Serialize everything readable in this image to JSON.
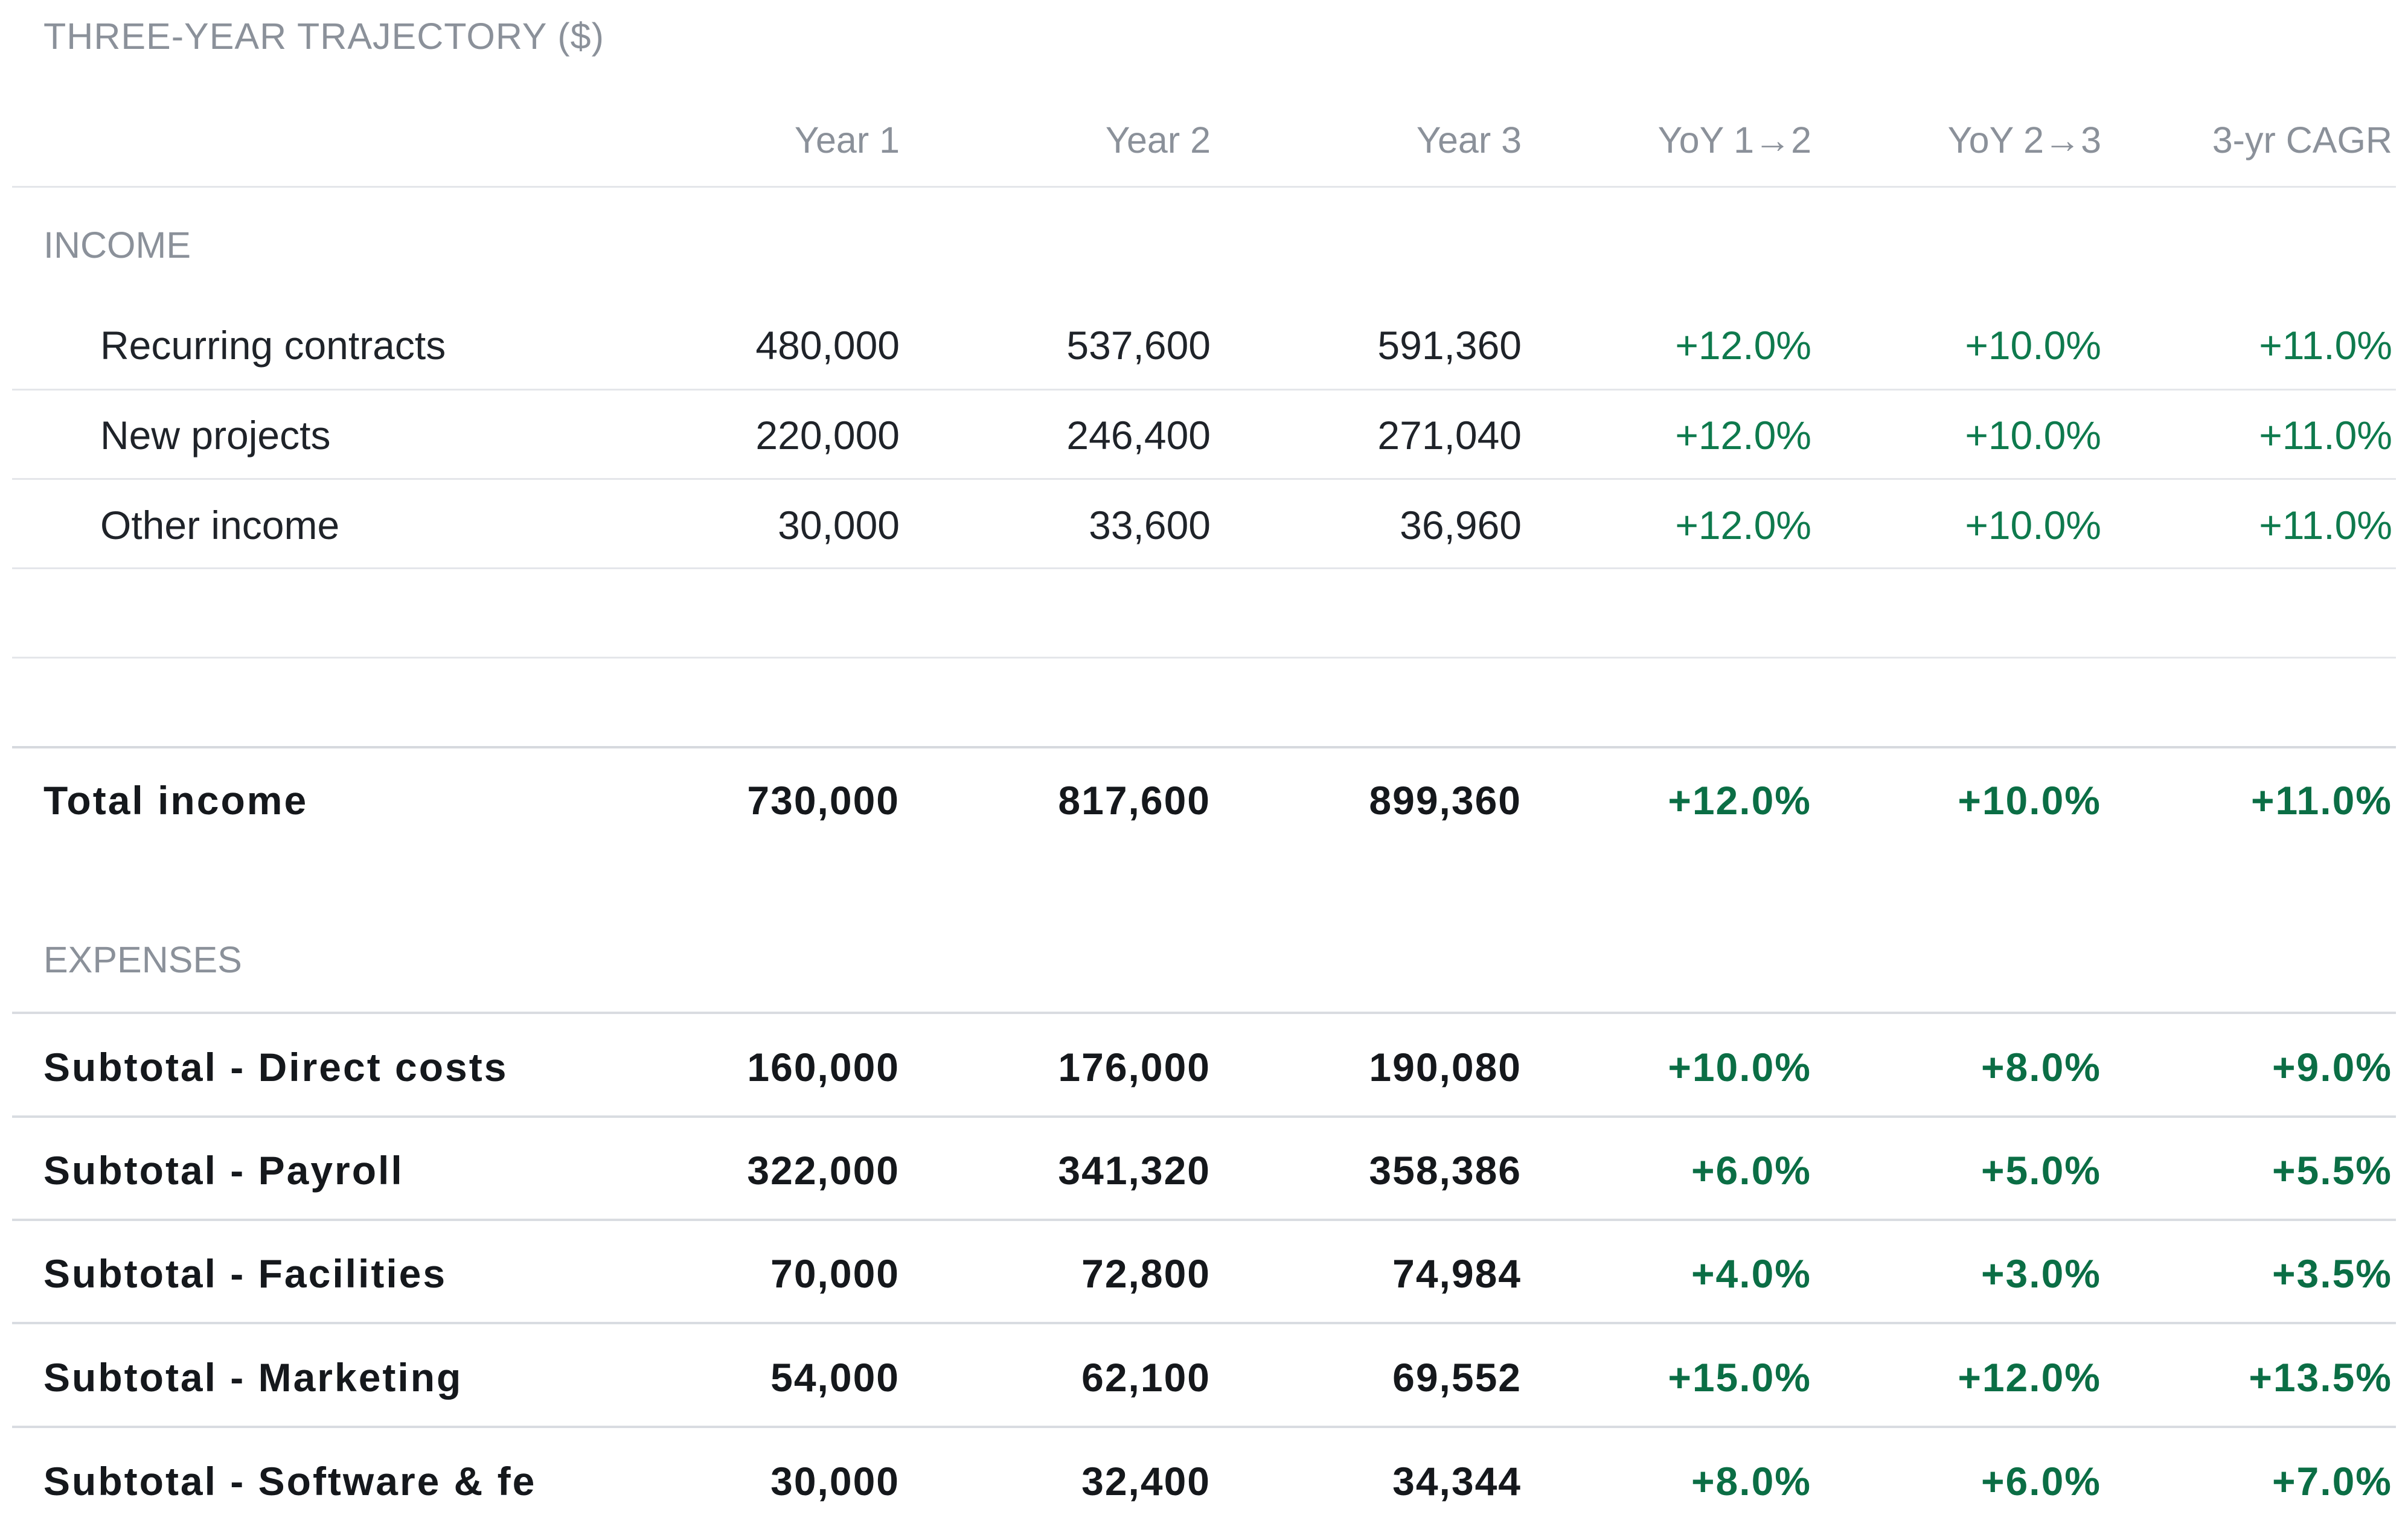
{
  "title": "THREE-YEAR TRAJECTORY ($)",
  "columns": [
    "Year 1",
    "Year 2",
    "Year 3",
    "YoY 1→2",
    "YoY 2→3",
    "3-yr CAGR"
  ],
  "income": {
    "label": "INCOME",
    "rows": [
      {
        "name": "Recurring contracts",
        "values": [
          "480,000",
          "537,600",
          "591,360",
          "+12.0%",
          "+10.0%",
          "+11.0%"
        ]
      },
      {
        "name": "New projects",
        "values": [
          "220,000",
          "246,400",
          "271,040",
          "+12.0%",
          "+10.0%",
          "+11.0%"
        ]
      },
      {
        "name": "Other income",
        "values": [
          "30,000",
          "33,600",
          "36,960",
          "+12.0%",
          "+10.0%",
          "+11.0%"
        ]
      }
    ],
    "total": {
      "name": "Total income",
      "values": [
        "730,000",
        "817,600",
        "899,360",
        "+12.0%",
        "+10.0%",
        "+11.0%"
      ]
    }
  },
  "expenses": {
    "label": "EXPENSES",
    "rows": [
      {
        "name": "Subtotal - Direct costs",
        "values": [
          "160,000",
          "176,000",
          "190,080",
          "+10.0%",
          "+8.0%",
          "+9.0%"
        ]
      },
      {
        "name": "Subtotal - Payroll",
        "values": [
          "322,000",
          "341,320",
          "358,386",
          "+6.0%",
          "+5.0%",
          "+5.5%"
        ]
      },
      {
        "name": "Subtotal - Facilities",
        "values": [
          "70,000",
          "72,800",
          "74,984",
          "+4.0%",
          "+3.0%",
          "+3.5%"
        ]
      },
      {
        "name": "Subtotal - Marketing",
        "values": [
          "54,000",
          "62,100",
          "69,552",
          "+15.0%",
          "+12.0%",
          "+13.5%"
        ]
      },
      {
        "name": "Subtotal - Software & fe",
        "values": [
          "30,000",
          "32,400",
          "34,344",
          "+8.0%",
          "+6.0%",
          "+7.0%"
        ]
      }
    ]
  },
  "colors": {
    "header_text": "#8b919a",
    "body_text": "#1f2329",
    "positive": "#0e7a4d",
    "divider": "#e4e6ea"
  }
}
